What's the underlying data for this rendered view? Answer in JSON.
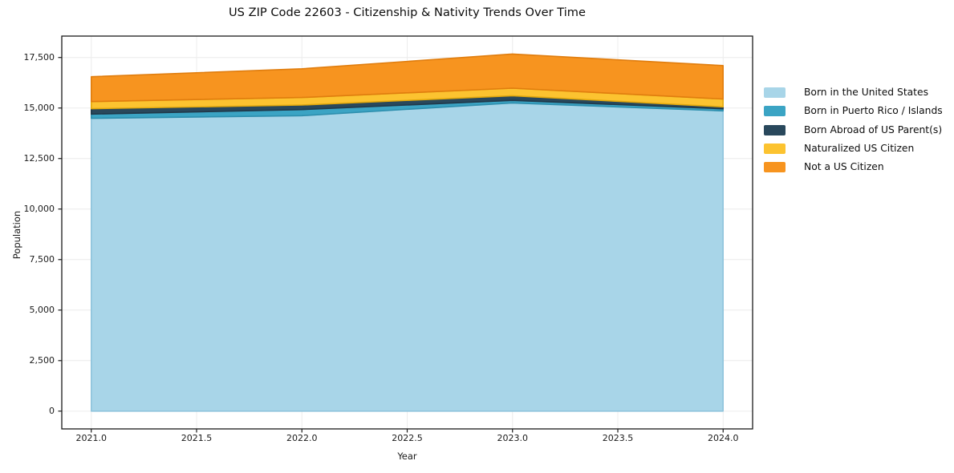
{
  "figure": {
    "background": "#ffffff",
    "plot_border_color": "#1a1a1a",
    "grid_color": "#ececec"
  },
  "chart_data": {
    "type": "area",
    "stacked": true,
    "title": "US ZIP Code 22603 - Citizenship & Nativity Trends Over Time",
    "xlabel": "Year",
    "ylabel": "Population",
    "x": [
      2021,
      2022,
      2023,
      2024
    ],
    "series": [
      {
        "name": "Born in the United States",
        "values": [
          14490,
          14620,
          15250,
          14860
        ],
        "color": "#a8d5e8",
        "edge": "#8fc4dc"
      },
      {
        "name": "Born in Puerto Rico / Islands",
        "values": [
          210,
          300,
          130,
          100
        ],
        "color": "#3ba4c4",
        "edge": "#2e8fae"
      },
      {
        "name": "Born Abroad of US Parent(s)",
        "values": [
          265,
          230,
          230,
          95
        ],
        "color": "#29485c",
        "edge": "#20394a"
      },
      {
        "name": "Naturalized US Citizen",
        "values": [
          355,
          370,
          370,
          390
        ],
        "color": "#fcc330",
        "edge": "#e3a90d"
      },
      {
        "name": "Not a US Citizen",
        "values": [
          1230,
          1420,
          1690,
          1655
        ],
        "color": "#f7941f",
        "edge": "#e07d0e"
      }
    ],
    "stacked_totals": [
      16550,
      16940,
      17670,
      17100
    ],
    "xlim": [
      2020.86,
      2024.14
    ],
    "ylim": [
      -880,
      18560
    ],
    "x_ticks": [
      {
        "v": 2021.0,
        "label": "2021.0"
      },
      {
        "v": 2021.5,
        "label": "2021.5"
      },
      {
        "v": 2022.0,
        "label": "2022.0"
      },
      {
        "v": 2022.5,
        "label": "2022.5"
      },
      {
        "v": 2023.0,
        "label": "2023.0"
      },
      {
        "v": 2023.5,
        "label": "2023.5"
      },
      {
        "v": 2024.0,
        "label": "2024.0"
      }
    ],
    "y_ticks": [
      {
        "v": 0,
        "label": "0"
      },
      {
        "v": 2500,
        "label": "2,500"
      },
      {
        "v": 5000,
        "label": "5,000"
      },
      {
        "v": 7500,
        "label": "7,500"
      },
      {
        "v": 10000,
        "label": "10,000"
      },
      {
        "v": 12500,
        "label": "12,500"
      },
      {
        "v": 15000,
        "label": "15,000"
      },
      {
        "v": 17500,
        "label": "17,500"
      }
    ],
    "grid": true,
    "legend_position": "right-outside-upper"
  }
}
